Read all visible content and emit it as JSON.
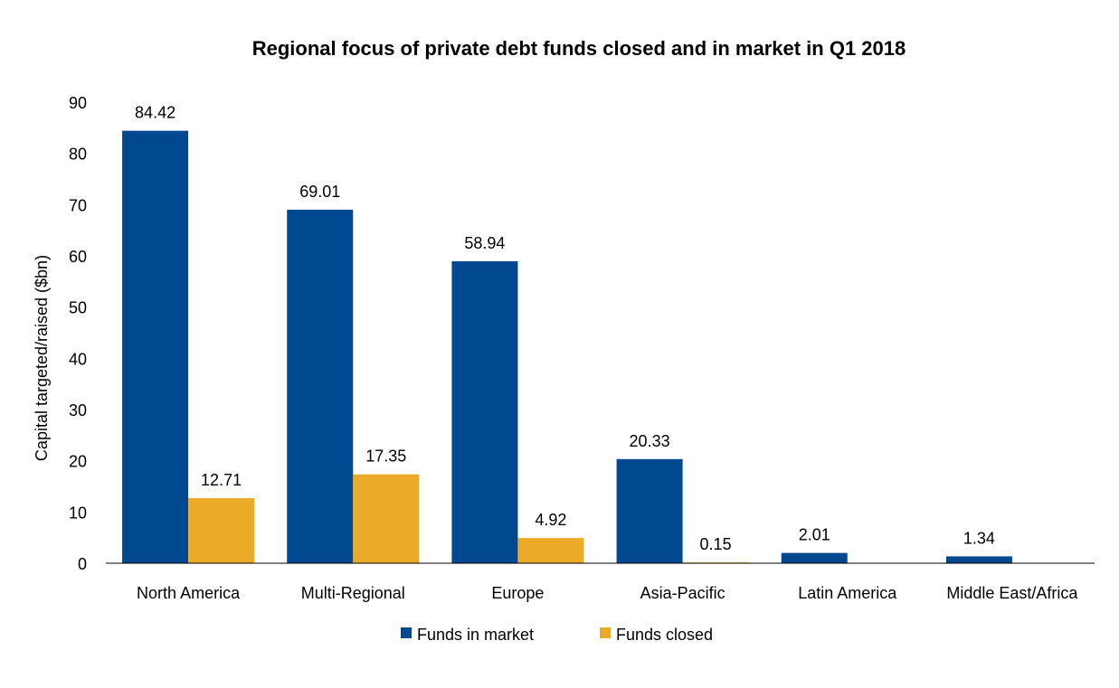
{
  "chart_data": {
    "type": "bar",
    "title": "Regional focus of private debt funds closed and in market in Q1 2018",
    "xlabel": "",
    "ylabel": "Capital targeted/raised ($bn)",
    "ylim": [
      0,
      90
    ],
    "yticks": [
      "0",
      "10",
      "20",
      "30",
      "40",
      "50",
      "60",
      "70",
      "80",
      "90"
    ],
    "categories": [
      "North America",
      "Multi-Regional",
      "Europe",
      "Asia-Pacific",
      "Latin America",
      "Middle East/Africa"
    ],
    "series": [
      {
        "name": "Funds in market",
        "color": "#004990",
        "values": [
          84.42,
          69.01,
          58.94,
          20.33,
          2.01,
          1.34
        ],
        "labels": [
          "84.42",
          "69.01",
          "58.94",
          "20.33",
          "2.01",
          "1.34"
        ]
      },
      {
        "name": "Funds closed",
        "color": "#EBAA27",
        "values": [
          12.71,
          17.35,
          4.92,
          0.15,
          null,
          null
        ],
        "labels": [
          "12.71",
          "17.35",
          "4.92",
          "0.15",
          null,
          null
        ]
      }
    ],
    "grid": false,
    "legend_position": "bottom"
  }
}
